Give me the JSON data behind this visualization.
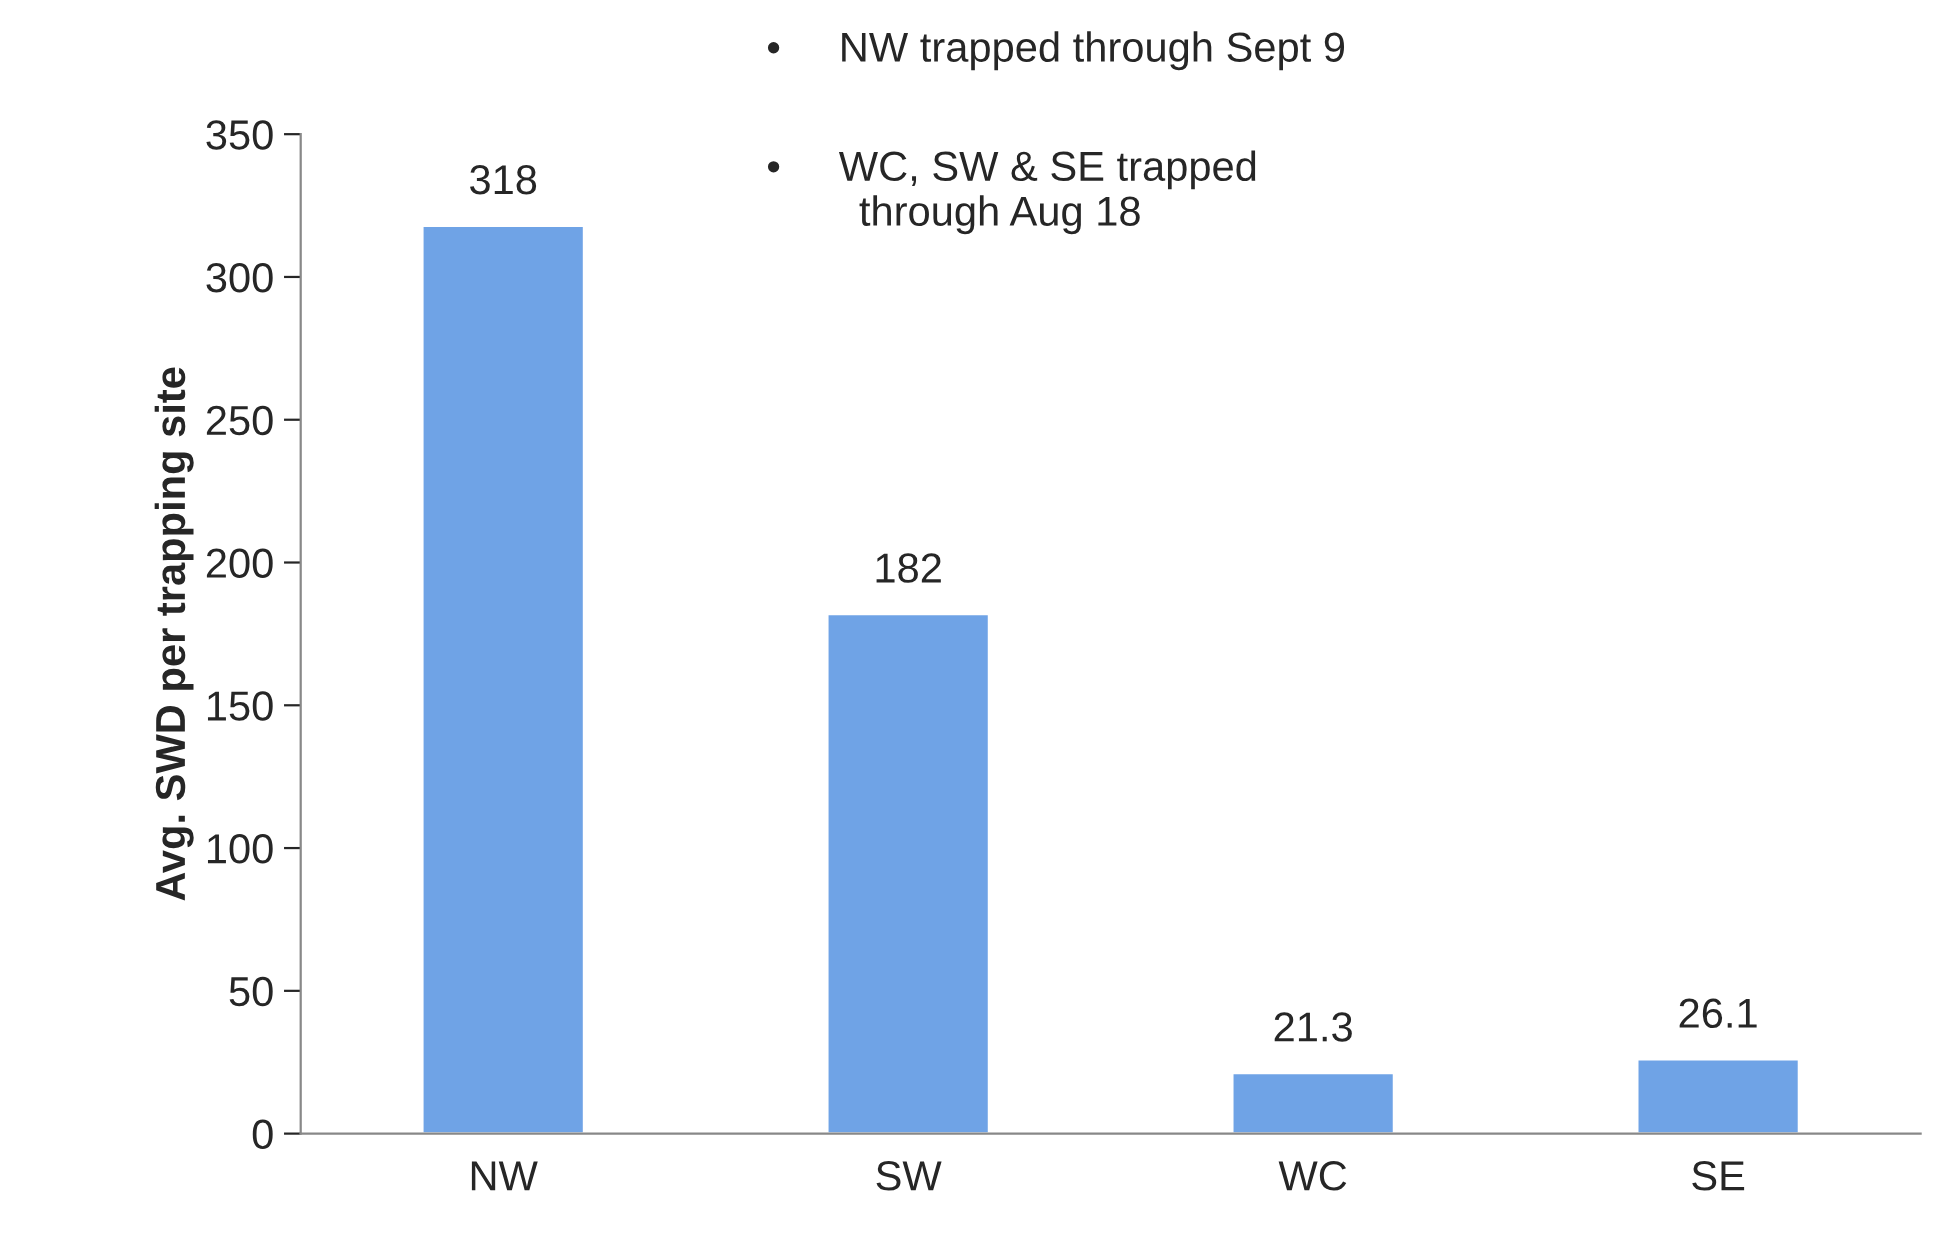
{
  "chart_data": {
    "type": "bar",
    "ylabel": "Avg. SWD per trapping site",
    "categories": [
      "NW",
      "SW",
      "WC",
      "SE"
    ],
    "values": [
      318,
      182,
      21.3,
      26.1
    ],
    "color": "#6fa3e6",
    "ylim": [
      0,
      350
    ],
    "yticks": [
      0,
      50,
      100,
      150,
      200,
      250,
      300,
      350
    ],
    "data_labels": true,
    "grid": false,
    "legend": false,
    "annotations": [
      "•     NW trapped through Sept 9",
      "•     WC, SW & SE trapped\n        through Aug 18"
    ]
  }
}
